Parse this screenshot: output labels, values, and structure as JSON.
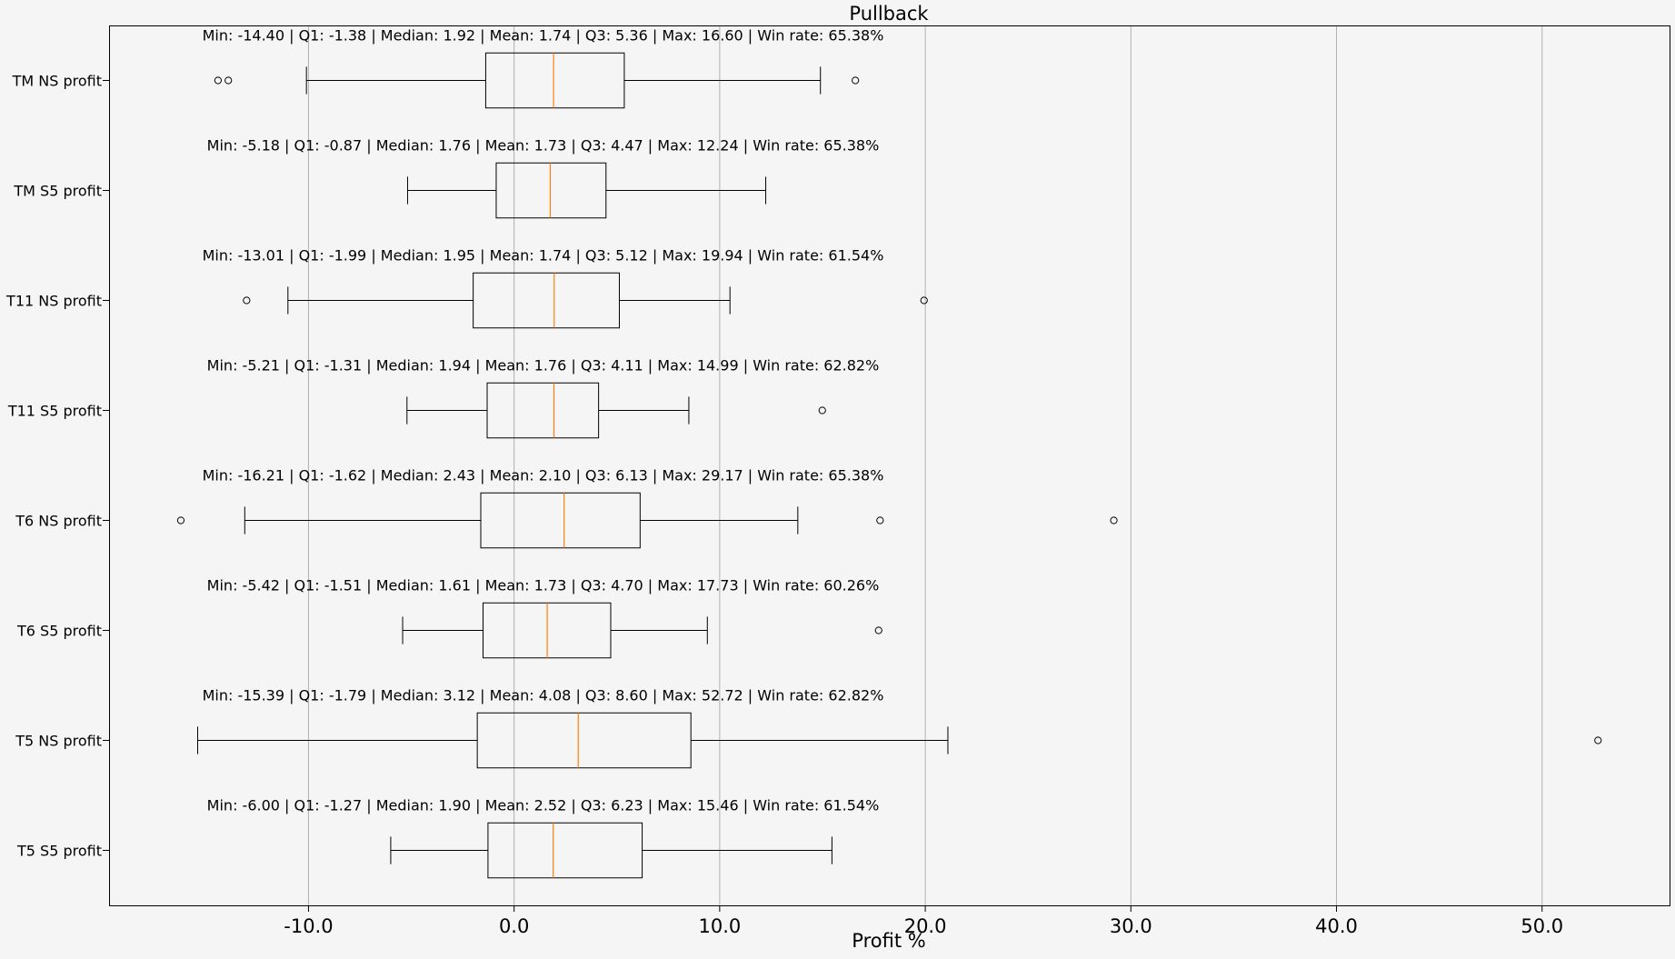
{
  "chart_data": {
    "type": "boxplot",
    "orientation": "horizontal",
    "title": "Pullback",
    "xlabel": "Profit %",
    "ylabel": "",
    "xlim": [
      -19.7,
      56.2
    ],
    "xticks": [
      -10,
      0,
      10,
      20,
      30,
      40,
      50
    ],
    "xtick_labels": [
      "-10.0",
      "0.0",
      "10.0",
      "20.0",
      "30.0",
      "40.0",
      "50.0"
    ],
    "grid": "vertical",
    "colors": {
      "background": "#f5f5f5",
      "box": "#000000",
      "median": "#ff7f0e",
      "grid": "#b0b0b0"
    },
    "series": [
      {
        "name": "TM NS profit",
        "whisker_low": -10.1,
        "q1": -1.38,
        "median": 1.92,
        "q3": 5.36,
        "whisker_high": 14.9,
        "outliers": [
          -14.4,
          -13.9,
          16.6
        ],
        "summary": "Min: -14.40 | Q1: -1.38 | Median: 1.92 | Mean: 1.74 | Q3: 5.36 | Max: 16.60 | Win rate: 65.38%"
      },
      {
        "name": "TM S5 profit",
        "whisker_low": -5.18,
        "q1": -0.87,
        "median": 1.76,
        "q3": 4.47,
        "whisker_high": 12.24,
        "outliers": [],
        "summary": "Min: -5.18 | Q1: -0.87 | Median: 1.76 | Mean: 1.73 | Q3: 4.47 | Max: 12.24 | Win rate: 65.38%"
      },
      {
        "name": "T11 NS profit",
        "whisker_low": -11.0,
        "q1": -1.99,
        "median": 1.95,
        "q3": 5.12,
        "whisker_high": 10.5,
        "outliers": [
          -13.01,
          19.94
        ],
        "summary": "Min: -13.01 | Q1: -1.99 | Median: 1.95 | Mean: 1.74 | Q3: 5.12 | Max: 19.94 | Win rate: 61.54%"
      },
      {
        "name": "T11 S5 profit",
        "whisker_low": -5.21,
        "q1": -1.31,
        "median": 1.94,
        "q3": 4.11,
        "whisker_high": 8.5,
        "outliers": [
          14.99
        ],
        "summary": "Min: -5.21 | Q1: -1.31 | Median: 1.94 | Mean: 1.76 | Q3: 4.11 | Max: 14.99 | Win rate: 62.82%"
      },
      {
        "name": "T6 NS profit",
        "whisker_low": -13.1,
        "q1": -1.62,
        "median": 2.43,
        "q3": 6.13,
        "whisker_high": 13.8,
        "outliers": [
          -16.21,
          17.8,
          29.17
        ],
        "summary": "Min: -16.21 | Q1: -1.62 | Median: 2.43 | Mean: 2.10 | Q3: 6.13 | Max: 29.17 | Win rate: 65.38%"
      },
      {
        "name": "T6 S5 profit",
        "whisker_low": -5.42,
        "q1": -1.51,
        "median": 1.61,
        "q3": 4.7,
        "whisker_high": 9.4,
        "outliers": [
          17.73
        ],
        "summary": "Min: -5.42 | Q1: -1.51 | Median: 1.61 | Mean: 1.73 | Q3: 4.70 | Max: 17.73 | Win rate: 60.26%"
      },
      {
        "name": "T5 NS profit",
        "whisker_low": -15.39,
        "q1": -1.79,
        "median": 3.12,
        "q3": 8.6,
        "whisker_high": 21.1,
        "outliers": [
          52.72
        ],
        "summary": "Min: -15.39 | Q1: -1.79 | Median: 3.12 | Mean: 4.08 | Q3: 8.60 | Max: 52.72 | Win rate: 62.82%"
      },
      {
        "name": "T5 S5 profit",
        "whisker_low": -6.0,
        "q1": -1.27,
        "median": 1.9,
        "q3": 6.23,
        "whisker_high": 15.46,
        "outliers": [],
        "summary": "Min: -6.00 | Q1: -1.27 | Median: 1.90 | Mean: 2.52 | Q3: 6.23 | Max: 15.46 | Win rate: 61.54%"
      }
    ]
  }
}
